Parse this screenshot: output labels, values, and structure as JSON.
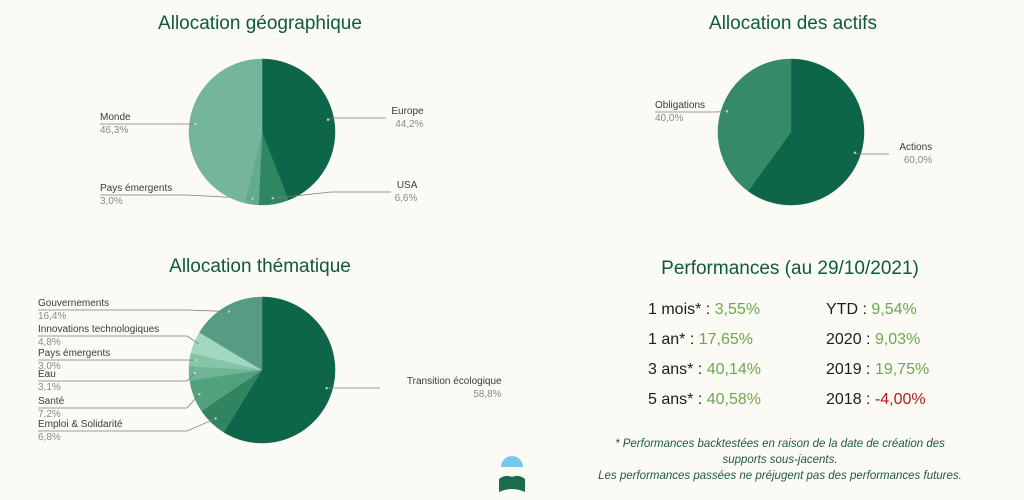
{
  "colors": {
    "background": "#fcfaf4",
    "title": "#0d5a40",
    "positive": "#6aa84f",
    "negative": "#b01c1c",
    "note": "#1e5b3f"
  },
  "chart_data": [
    {
      "type": "pie",
      "title": "Allocation géographique",
      "slices": [
        {
          "label": "Europe",
          "value": 44.2,
          "display": "44,2%",
          "color": "#0d654a"
        },
        {
          "label": "USA",
          "value": 6.6,
          "display": "6,6%",
          "color": "#2f8761"
        },
        {
          "label": "Pays émergents",
          "value": 3.0,
          "display": "3,0%",
          "color": "#61ab8f"
        },
        {
          "label": "Monde",
          "value": 46.3,
          "display": "46,3%",
          "color": "#75b59c"
        }
      ]
    },
    {
      "type": "pie",
      "title": "Allocation des actifs",
      "slices": [
        {
          "label": "Actions",
          "value": 60.0,
          "display": "60,0%",
          "color": "#0d654a"
        },
        {
          "label": "Obligations",
          "value": 40.0,
          "display": "40,0%",
          "color": "#358a68"
        }
      ]
    },
    {
      "type": "pie",
      "title": "Allocation thématique",
      "slices": [
        {
          "label": "Transition écologique",
          "value": 58.8,
          "display": "58,8%",
          "color": "#0d654a"
        },
        {
          "label": "Emploi & Solidarité",
          "value": 6.8,
          "display": "6,8%",
          "color": "#318460"
        },
        {
          "label": "Santé",
          "value": 7.2,
          "display": "7,2%",
          "color": "#52a17d"
        },
        {
          "label": "Eau",
          "value": 3.1,
          "display": "3,1%",
          "color": "#6db596"
        },
        {
          "label": "Pays émergents",
          "value": 3.0,
          "display": "3,0%",
          "color": "#86c5a8"
        },
        {
          "label": "Innovations technologiques",
          "value": 4.8,
          "display": "4,8%",
          "color": "#a2d8c0"
        },
        {
          "label": "Gouvernements",
          "value": 16.4,
          "display": "16,4%",
          "color": "#589b84"
        }
      ]
    }
  ],
  "performance": {
    "title": "Performances (au 29/10/2021)",
    "left": [
      {
        "label": "1 mois* :",
        "value": "3,55%",
        "negative": false
      },
      {
        "label": "1 an* :",
        "value": "17,65%",
        "negative": false
      },
      {
        "label": "3 ans* :",
        "value": "40,14%",
        "negative": false
      },
      {
        "label": "5 ans* :",
        "value": "40,58%",
        "negative": false
      }
    ],
    "right": [
      {
        "label": "YTD :",
        "value": "9,54%",
        "negative": false
      },
      {
        "label": "2020 :",
        "value": "9,03%",
        "negative": false
      },
      {
        "label": "2019 :",
        "value": "19,75%",
        "negative": false
      },
      {
        "label": "2018 :",
        "value": "-4,00%",
        "negative": true
      }
    ],
    "notes": [
      "* Performances backtestées en raison de la date de création des",
      "supports sous-jacents.",
      "Les performances passées ne préjugent pas des performances futures."
    ]
  },
  "logo_icon": "mountain-sun-logo-icon"
}
